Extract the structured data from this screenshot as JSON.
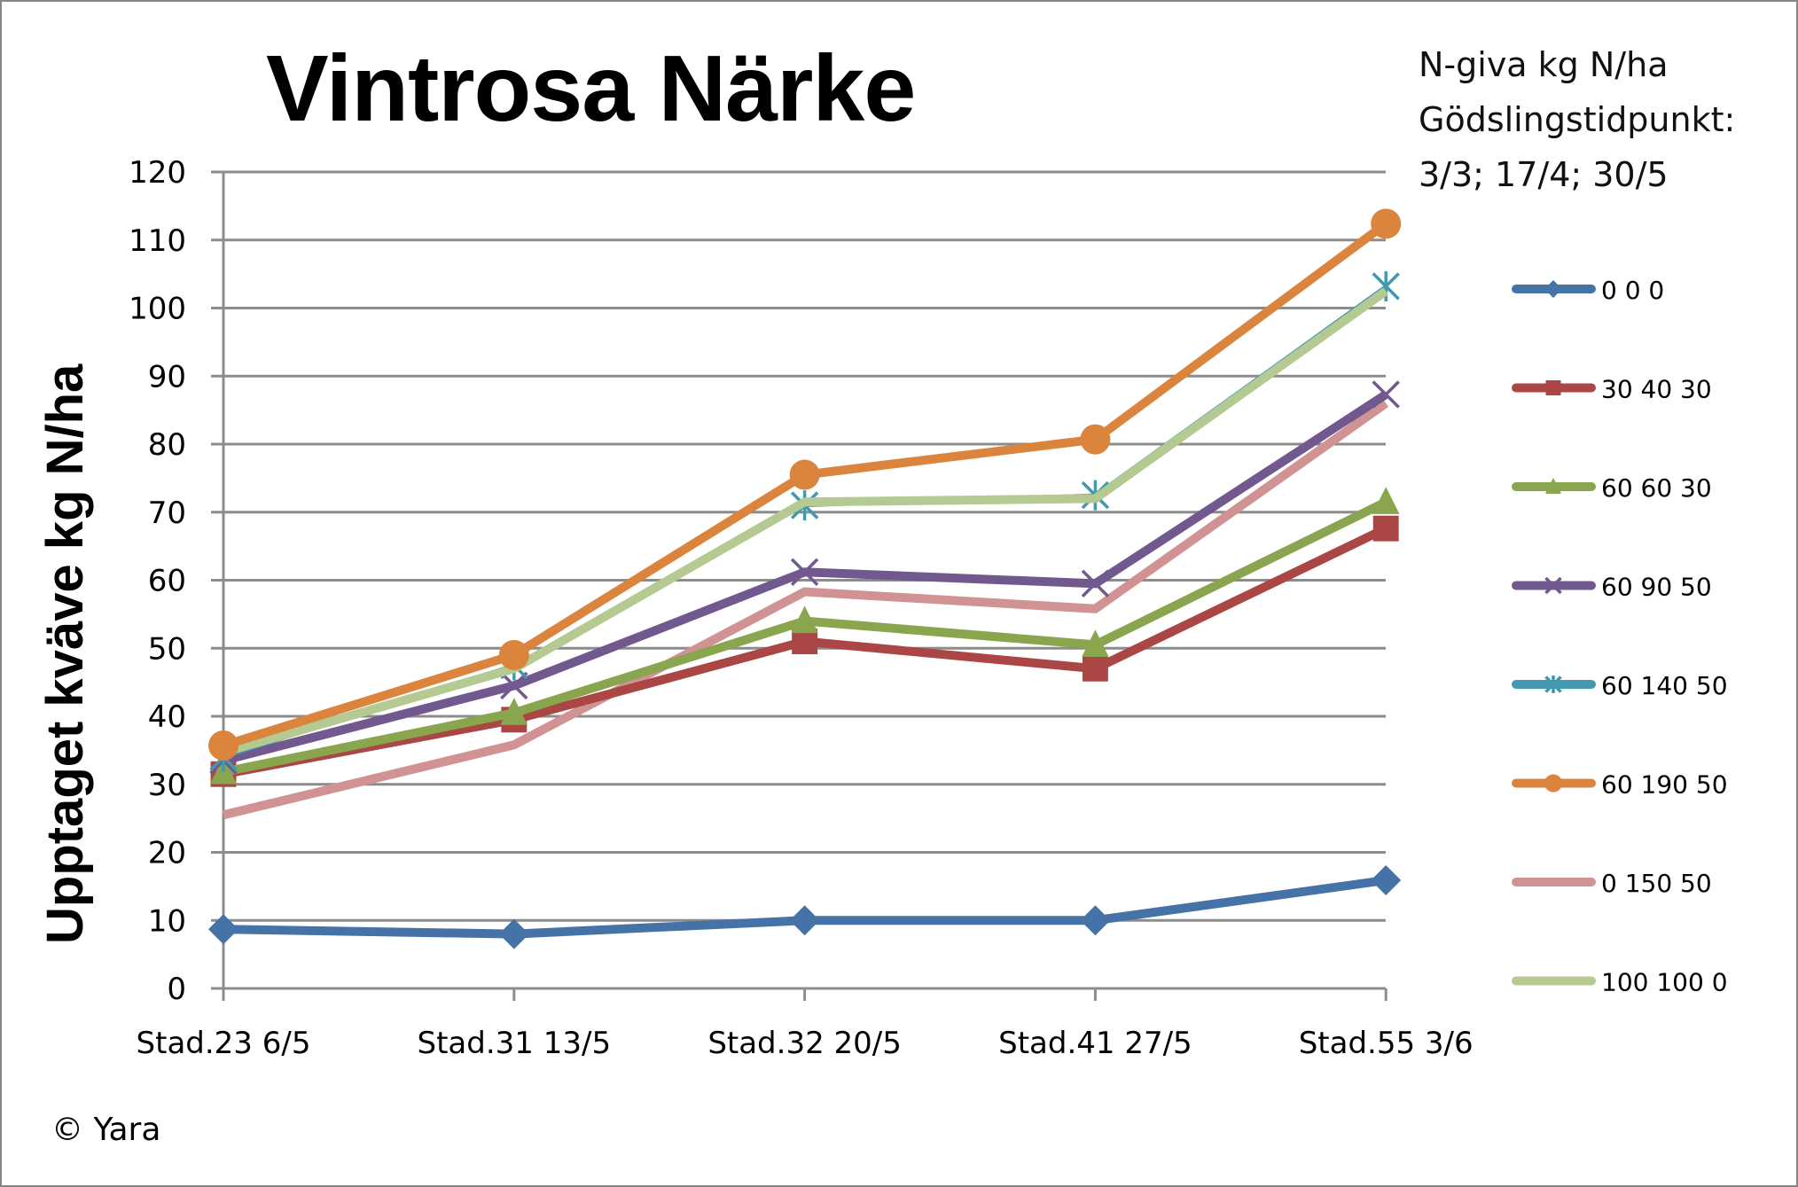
{
  "title": "Vintrosa Närke",
  "note": {
    "line1": "N-giva kg N/ha",
    "line2": "Gödslingstidpunkt:",
    "line3": "3/3; 17/4; 30/5"
  },
  "copyright": "© Yara",
  "chart_data": {
    "type": "line",
    "title": "Vintrosa Närke",
    "xlabel": "",
    "ylabel": "Upptaget kväve kg N/ha",
    "ylim": [
      0,
      120
    ],
    "yticks": [
      0,
      10,
      20,
      30,
      40,
      50,
      60,
      70,
      80,
      90,
      100,
      110,
      120
    ],
    "grid": true,
    "legend_position": "right",
    "legend_title": "N-giva kg N/ha Gödslingstidpunkt: 3/3; 17/4; 30/5",
    "categories": [
      "Stad.23 6/5",
      "Stad.31 13/5",
      "Stad.32 20/5",
      "Stad.41 27/5",
      "Stad.55 3/6"
    ],
    "series": [
      {
        "name": "0 0 0",
        "color": "#4572A7",
        "marker": "diamond",
        "values": [
          8.7,
          8.0,
          10.0,
          10.0,
          15.9
        ]
      },
      {
        "name": "30 40 30",
        "color": "#AA4643",
        "marker": "square",
        "values": [
          31.5,
          39.5,
          51.0,
          47.0,
          67.6
        ]
      },
      {
        "name": "60 60 30",
        "color": "#89A54E",
        "marker": "triangle",
        "values": [
          31.8,
          40.5,
          54.0,
          50.5,
          71.5
        ]
      },
      {
        "name": "60 90 50",
        "color": "#71588F",
        "marker": "x",
        "values": [
          33.5,
          44.5,
          61.2,
          59.5,
          87.3
        ]
      },
      {
        "name": "60 140 50",
        "color": "#4198AF",
        "marker": "star",
        "values": [
          34.0,
          47.5,
          71.0,
          72.5,
          103.2
        ]
      },
      {
        "name": "60 190 50",
        "color": "#DB843D",
        "marker": "circle",
        "values": [
          35.7,
          49.0,
          75.5,
          80.7,
          112.4
        ]
      },
      {
        "name": "0 150 50",
        "color": "#D09292",
        "marker": "none",
        "values": [
          25.5,
          35.8,
          58.3,
          55.8,
          86.0
        ]
      },
      {
        "name": "100 100 0",
        "color": "#B4CA92",
        "marker": "none",
        "values": [
          34.7,
          47.0,
          71.5,
          72.0,
          102.5
        ]
      }
    ]
  }
}
